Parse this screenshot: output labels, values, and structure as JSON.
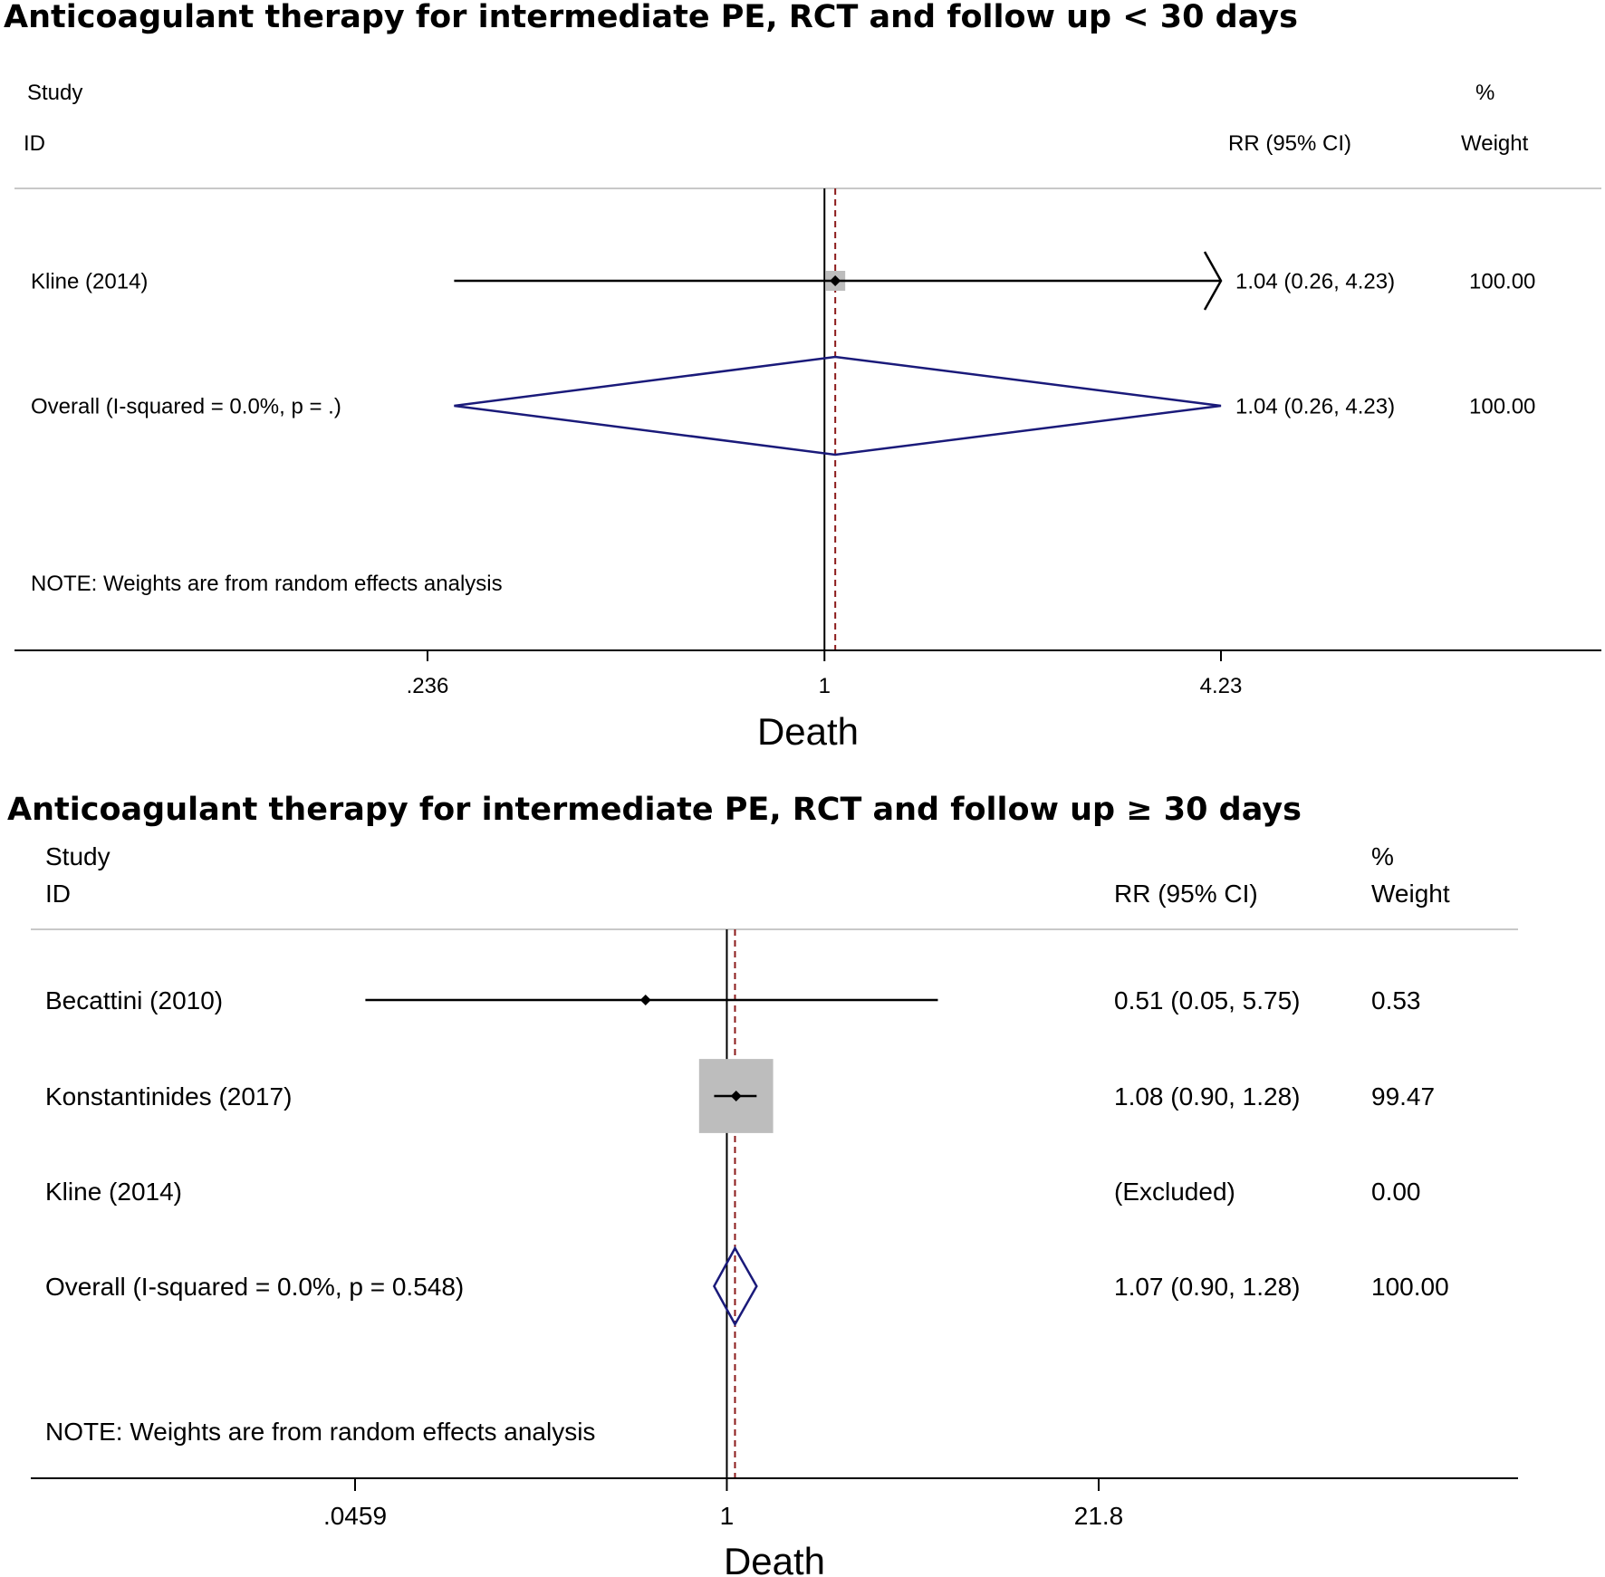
{
  "chart_data": [
    {
      "type": "forest",
      "title": "Anticoagulant therapy for intermediate PE, RCT and follow up < 30 days",
      "header": {
        "study": "Study",
        "id": "ID",
        "estimate": "RR (95% CI)",
        "pct": "%",
        "weight": "Weight"
      },
      "scale": "log",
      "xlim": [
        0.236,
        4.23
      ],
      "ticks": [
        {
          "value": 0.236,
          "label": ".236"
        },
        {
          "value": 1,
          "label": "1"
        },
        {
          "value": 4.23,
          "label": "4.23"
        }
      ],
      "xlabel": "Death",
      "null_line": 1,
      "overall_line": 1.04,
      "note": "NOTE: Weights are from random effects analysis",
      "studies": [
        {
          "label": "Kline (2014)",
          "rr": 1.04,
          "lo": 0.26,
          "hi": 4.23,
          "weight": 100.0,
          "ci_text": "1.04 (0.26, 4.23)",
          "weight_text": "100.00",
          "kind": "study",
          "arrow_right": true
        }
      ],
      "overall": {
        "label": "Overall  (I-squared = 0.0%, p = .)",
        "rr": 1.04,
        "lo": 0.26,
        "hi": 4.23,
        "ci_text": "1.04 (0.26, 4.23)",
        "weight_text": "100.00"
      }
    },
    {
      "type": "forest",
      "title": "Anticoagulant therapy for intermediate PE, RCT and follow up ≥ 30 days",
      "header": {
        "study": "Study",
        "id": "ID",
        "estimate": "RR (95% CI)",
        "pct": "%",
        "weight": "Weight"
      },
      "scale": "log",
      "xlim": [
        0.0459,
        21.8
      ],
      "ticks": [
        {
          "value": 0.0459,
          "label": ".0459"
        },
        {
          "value": 1,
          "label": "1"
        },
        {
          "value": 21.8,
          "label": "21.8"
        }
      ],
      "xlabel": "Death",
      "null_line": 1,
      "overall_line": 1.07,
      "note": "NOTE: Weights are from random effects analysis",
      "studies": [
        {
          "label": "Becattini (2010)",
          "rr": 0.51,
          "lo": 0.05,
          "hi": 5.75,
          "weight": 0.53,
          "ci_text": "0.51 (0.05, 5.75)",
          "weight_text": "0.53",
          "kind": "study"
        },
        {
          "label": "Konstantinides (2017)",
          "rr": 1.08,
          "lo": 0.9,
          "hi": 1.28,
          "weight": 99.47,
          "ci_text": "1.08 (0.90, 1.28)",
          "weight_text": "99.47",
          "kind": "study"
        },
        {
          "label": "Kline (2014)",
          "rr": null,
          "lo": null,
          "hi": null,
          "weight": 0.0,
          "ci_text": "(Excluded)",
          "weight_text": "0.00",
          "kind": "excluded"
        }
      ],
      "overall": {
        "label": "Overall  (I-squared = 0.0%, p = 0.548)",
        "rr": 1.07,
        "lo": 0.9,
        "hi": 1.28,
        "ci_text": "1.07 (0.90, 1.28)",
        "weight_text": "100.00"
      }
    }
  ],
  "colors": {
    "diamond": "#1a1a7a",
    "refline": "#8b1a1a",
    "weightbox": "#bdbdbd",
    "axis": "#000000",
    "divider": "#c8c8c8"
  }
}
